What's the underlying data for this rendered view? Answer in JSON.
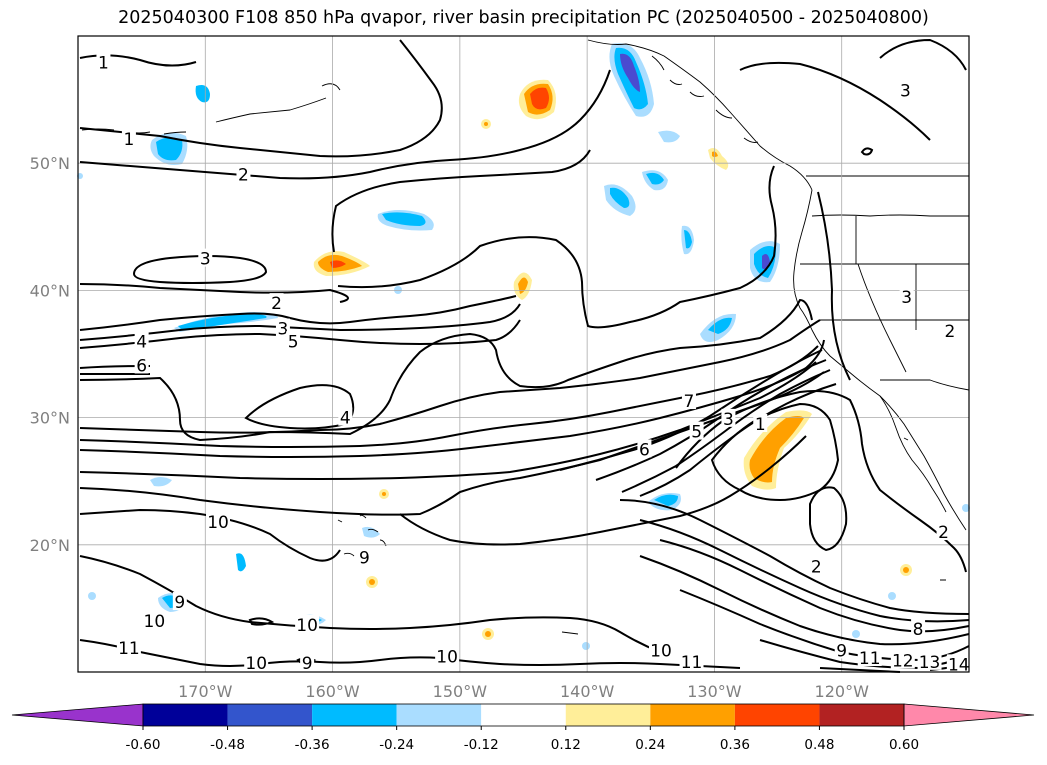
{
  "title": "2025040300 F108 850 hPa qvapor, river basin precipitation PC (2025040500 - 2025040800)",
  "map": {
    "lat_ticks": [
      {
        "label": "50°N",
        "lat": 50
      },
      {
        "label": "40°N",
        "lat": 40
      },
      {
        "label": "30°N",
        "lat": 30
      },
      {
        "label": "20°N",
        "lat": 20
      }
    ],
    "lon_ticks": [
      {
        "label": "170°W",
        "lon": -170
      },
      {
        "label": "160°W",
        "lon": -160
      },
      {
        "label": "150°W",
        "lon": -150
      },
      {
        "label": "140°W",
        "lon": -140
      },
      {
        "label": "130°W",
        "lon": -130
      },
      {
        "label": "120°W",
        "lon": -120
      }
    ],
    "extent": {
      "lon_min": -180,
      "lon_max": -110,
      "lat_min": 10,
      "lat_max": 60
    },
    "contour_labels": [
      {
        "text": "1",
        "lon": -178.0,
        "lat": 57.9
      },
      {
        "text": "1",
        "lon": -176.0,
        "lat": 51.9
      },
      {
        "text": "2",
        "lon": -167.0,
        "lat": 49.1
      },
      {
        "text": "3",
        "lon": -170.0,
        "lat": 42.5
      },
      {
        "text": "2",
        "lon": -164.4,
        "lat": 39.0
      },
      {
        "text": "3",
        "lon": -163.9,
        "lat": 37.0
      },
      {
        "text": "5",
        "lon": -163.1,
        "lat": 36.0
      },
      {
        "text": "4",
        "lon": -175.0,
        "lat": 36.0
      },
      {
        "text": "6",
        "lon": -175.0,
        "lat": 34.1
      },
      {
        "text": "4",
        "lon": -159.0,
        "lat": 30.0
      },
      {
        "text": "10",
        "lon": -169.0,
        "lat": 21.8
      },
      {
        "text": "9",
        "lon": -157.5,
        "lat": 19.0
      },
      {
        "text": "9",
        "lon": -172.0,
        "lat": 15.5
      },
      {
        "text": "10",
        "lon": -174.0,
        "lat": 14.0
      },
      {
        "text": "10",
        "lon": -162.0,
        "lat": 13.7
      },
      {
        "text": "11",
        "lon": -176.0,
        "lat": 11.9
      },
      {
        "text": "10",
        "lon": -166.0,
        "lat": 10.7
      },
      {
        "text": "9",
        "lon": -162.0,
        "lat": 10.7
      },
      {
        "text": "10",
        "lon": -151.0,
        "lat": 11.2
      },
      {
        "text": "10",
        "lon": -134.2,
        "lat": 11.7
      },
      {
        "text": "11",
        "lon": -131.8,
        "lat": 10.8
      },
      {
        "text": "7",
        "lon": -132.0,
        "lat": 31.3
      },
      {
        "text": "6",
        "lon": -135.5,
        "lat": 27.5
      },
      {
        "text": "5",
        "lon": -131.4,
        "lat": 28.9
      },
      {
        "text": "3",
        "lon": -128.9,
        "lat": 29.9
      },
      {
        "text": "1",
        "lon": -126.4,
        "lat": 29.5
      },
      {
        "text": "2",
        "lon": -122.0,
        "lat": 18.3
      },
      {
        "text": "9",
        "lon": -120.0,
        "lat": 11.7
      },
      {
        "text": "11",
        "lon": -117.8,
        "lat": 11.1
      },
      {
        "text": "12",
        "lon": -115.2,
        "lat": 10.9
      },
      {
        "text": "13",
        "lon": -113.1,
        "lat": 10.8
      },
      {
        "text": "14",
        "lon": -110.8,
        "lat": 10.6
      },
      {
        "text": "8",
        "lon": -114.0,
        "lat": 13.4
      },
      {
        "text": "2",
        "lon": -112.0,
        "lat": 21.0
      },
      {
        "text": "3",
        "lon": -114.9,
        "lat": 39.5
      },
      {
        "text": "3",
        "lon": -115.0,
        "lat": 55.7
      },
      {
        "text": "2",
        "lon": -111.5,
        "lat": 36.8
      }
    ]
  },
  "colorbar": {
    "tick_labels": [
      "-0.60",
      "-0.48",
      "-0.36",
      "-0.24",
      "-0.12",
      "0.12",
      "0.24",
      "0.36",
      "0.48",
      "0.60"
    ],
    "colors": [
      "#9933cc",
      "#000099",
      "#3355cc",
      "#00bbff",
      "#aaddff",
      "#ffffff",
      "#ffee99",
      "#ffa000",
      "#ff4400",
      "#b22222",
      "#ff88aa"
    ]
  },
  "colors": {
    "negative_strong": "#4a4ad0",
    "negative_mid": "#00bbff",
    "negative_light": "#aaddff",
    "positive_light": "#ffee99",
    "positive_mid": "#ffa000",
    "positive_strong": "#ff4400",
    "grid": "#aaaaaa",
    "label_gray": "#808080"
  }
}
